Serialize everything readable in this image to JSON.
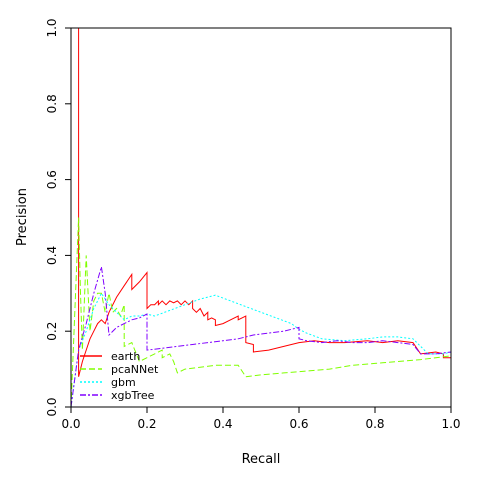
{
  "chart_data": {
    "type": "line",
    "title": "",
    "xlabel": "Recall",
    "ylabel": "Precision",
    "xlim": [
      0,
      1
    ],
    "ylim": [
      0,
      1
    ],
    "xticks": [
      "0.0",
      "0.2",
      "0.4",
      "0.6",
      "0.8",
      "1.0"
    ],
    "yticks": [
      "0.0",
      "0.2",
      "0.4",
      "0.6",
      "0.8",
      "1.0"
    ],
    "grid": false,
    "legend_position": "bottom-left",
    "series": [
      {
        "name": "earth",
        "color": "#ff0000",
        "dash": "solid",
        "points": [
          [
            0,
            0
          ],
          [
            0,
            1
          ],
          [
            0.02,
            1
          ],
          [
            0.02,
            0.08
          ],
          [
            0.03,
            0.12
          ],
          [
            0.04,
            0.15
          ],
          [
            0.05,
            0.18
          ],
          [
            0.06,
            0.2
          ],
          [
            0.07,
            0.22
          ],
          [
            0.08,
            0.23
          ],
          [
            0.09,
            0.22
          ],
          [
            0.1,
            0.25
          ],
          [
            0.12,
            0.29
          ],
          [
            0.14,
            0.32
          ],
          [
            0.16,
            0.35
          ],
          [
            0.16,
            0.31
          ],
          [
            0.18,
            0.33
          ],
          [
            0.2,
            0.355
          ],
          [
            0.2,
            0.26
          ],
          [
            0.21,
            0.27
          ],
          [
            0.22,
            0.27
          ],
          [
            0.23,
            0.28
          ],
          [
            0.23,
            0.27
          ],
          [
            0.24,
            0.28
          ],
          [
            0.25,
            0.27
          ],
          [
            0.26,
            0.28
          ],
          [
            0.27,
            0.275
          ],
          [
            0.28,
            0.28
          ],
          [
            0.29,
            0.27
          ],
          [
            0.3,
            0.28
          ],
          [
            0.31,
            0.27
          ],
          [
            0.32,
            0.28
          ],
          [
            0.32,
            0.26
          ],
          [
            0.33,
            0.25
          ],
          [
            0.34,
            0.26
          ],
          [
            0.35,
            0.24
          ],
          [
            0.36,
            0.25
          ],
          [
            0.36,
            0.23
          ],
          [
            0.37,
            0.235
          ],
          [
            0.38,
            0.23
          ],
          [
            0.38,
            0.215
          ],
          [
            0.4,
            0.22
          ],
          [
            0.42,
            0.23
          ],
          [
            0.44,
            0.24
          ],
          [
            0.44,
            0.23
          ],
          [
            0.46,
            0.24
          ],
          [
            0.46,
            0.17
          ],
          [
            0.48,
            0.165
          ],
          [
            0.48,
            0.145
          ],
          [
            0.52,
            0.15
          ],
          [
            0.56,
            0.16
          ],
          [
            0.6,
            0.17
          ],
          [
            0.64,
            0.175
          ],
          [
            0.68,
            0.17
          ],
          [
            0.72,
            0.17
          ],
          [
            0.78,
            0.175
          ],
          [
            0.82,
            0.17
          ],
          [
            0.86,
            0.175
          ],
          [
            0.9,
            0.17
          ],
          [
            0.92,
            0.14
          ],
          [
            0.96,
            0.145
          ],
          [
            0.98,
            0.14
          ],
          [
            0.98,
            0.13
          ],
          [
            1.0,
            0.13
          ]
        ]
      },
      {
        "name": "pcaNNet",
        "color": "#80ff00",
        "dash": "dashed",
        "points": [
          [
            0,
            0
          ],
          [
            0.01,
            0.25
          ],
          [
            0.02,
            0.5
          ],
          [
            0.025,
            0.3
          ],
          [
            0.03,
            0.15
          ],
          [
            0.04,
            0.4
          ],
          [
            0.05,
            0.2
          ],
          [
            0.06,
            0.28
          ],
          [
            0.07,
            0.3
          ],
          [
            0.08,
            0.3
          ],
          [
            0.09,
            0.25
          ],
          [
            0.1,
            0.3
          ],
          [
            0.11,
            0.25
          ],
          [
            0.12,
            0.26
          ],
          [
            0.13,
            0.24
          ],
          [
            0.14,
            0.27
          ],
          [
            0.14,
            0.16
          ],
          [
            0.16,
            0.17
          ],
          [
            0.18,
            0.12
          ],
          [
            0.2,
            0.13
          ],
          [
            0.22,
            0.14
          ],
          [
            0.24,
            0.15
          ],
          [
            0.24,
            0.13
          ],
          [
            0.26,
            0.14
          ],
          [
            0.27,
            0.12
          ],
          [
            0.28,
            0.09
          ],
          [
            0.3,
            0.1
          ],
          [
            0.34,
            0.105
          ],
          [
            0.38,
            0.11
          ],
          [
            0.42,
            0.11
          ],
          [
            0.44,
            0.11
          ],
          [
            0.46,
            0.08
          ],
          [
            0.5,
            0.085
          ],
          [
            0.56,
            0.09
          ],
          [
            0.62,
            0.095
          ],
          [
            0.68,
            0.1
          ],
          [
            0.74,
            0.11
          ],
          [
            0.8,
            0.115
          ],
          [
            0.86,
            0.12
          ],
          [
            0.92,
            0.125
          ],
          [
            0.96,
            0.13
          ],
          [
            1.0,
            0.135
          ]
        ]
      },
      {
        "name": "gbm",
        "color": "#00ffff",
        "dash": "dotted",
        "points": [
          [
            0,
            0
          ],
          [
            0.02,
            0.15
          ],
          [
            0.04,
            0.2
          ],
          [
            0.06,
            0.26
          ],
          [
            0.08,
            0.3
          ],
          [
            0.1,
            0.27
          ],
          [
            0.12,
            0.25
          ],
          [
            0.14,
            0.23
          ],
          [
            0.16,
            0.24
          ],
          [
            0.18,
            0.24
          ],
          [
            0.2,
            0.245
          ],
          [
            0.22,
            0.24
          ],
          [
            0.26,
            0.255
          ],
          [
            0.3,
            0.27
          ],
          [
            0.34,
            0.285
          ],
          [
            0.38,
            0.295
          ],
          [
            0.42,
            0.28
          ],
          [
            0.46,
            0.265
          ],
          [
            0.5,
            0.25
          ],
          [
            0.54,
            0.235
          ],
          [
            0.58,
            0.22
          ],
          [
            0.6,
            0.205
          ],
          [
            0.62,
            0.195
          ],
          [
            0.66,
            0.18
          ],
          [
            0.72,
            0.175
          ],
          [
            0.78,
            0.18
          ],
          [
            0.82,
            0.185
          ],
          [
            0.86,
            0.185
          ],
          [
            0.9,
            0.18
          ],
          [
            0.94,
            0.14
          ],
          [
            0.98,
            0.14
          ],
          [
            1.0,
            0.145
          ]
        ]
      },
      {
        "name": "xgbTree",
        "color": "#8000ff",
        "dash": "dashdot",
        "points": [
          [
            0,
            0
          ],
          [
            0.02,
            0.15
          ],
          [
            0.04,
            0.22
          ],
          [
            0.06,
            0.3
          ],
          [
            0.08,
            0.37
          ],
          [
            0.09,
            0.3
          ],
          [
            0.1,
            0.19
          ],
          [
            0.12,
            0.21
          ],
          [
            0.14,
            0.22
          ],
          [
            0.16,
            0.23
          ],
          [
            0.18,
            0.235
          ],
          [
            0.2,
            0.245
          ],
          [
            0.2,
            0.15
          ],
          [
            0.24,
            0.155
          ],
          [
            0.28,
            0.16
          ],
          [
            0.32,
            0.165
          ],
          [
            0.36,
            0.17
          ],
          [
            0.4,
            0.175
          ],
          [
            0.44,
            0.18
          ],
          [
            0.48,
            0.19
          ],
          [
            0.52,
            0.195
          ],
          [
            0.56,
            0.2
          ],
          [
            0.6,
            0.21
          ],
          [
            0.6,
            0.18
          ],
          [
            0.62,
            0.175
          ],
          [
            0.66,
            0.17
          ],
          [
            0.7,
            0.175
          ],
          [
            0.74,
            0.17
          ],
          [
            0.78,
            0.17
          ],
          [
            0.82,
            0.175
          ],
          [
            0.86,
            0.17
          ],
          [
            0.9,
            0.165
          ],
          [
            0.92,
            0.14
          ],
          [
            0.96,
            0.14
          ],
          [
            1.0,
            0.145
          ]
        ]
      }
    ]
  }
}
